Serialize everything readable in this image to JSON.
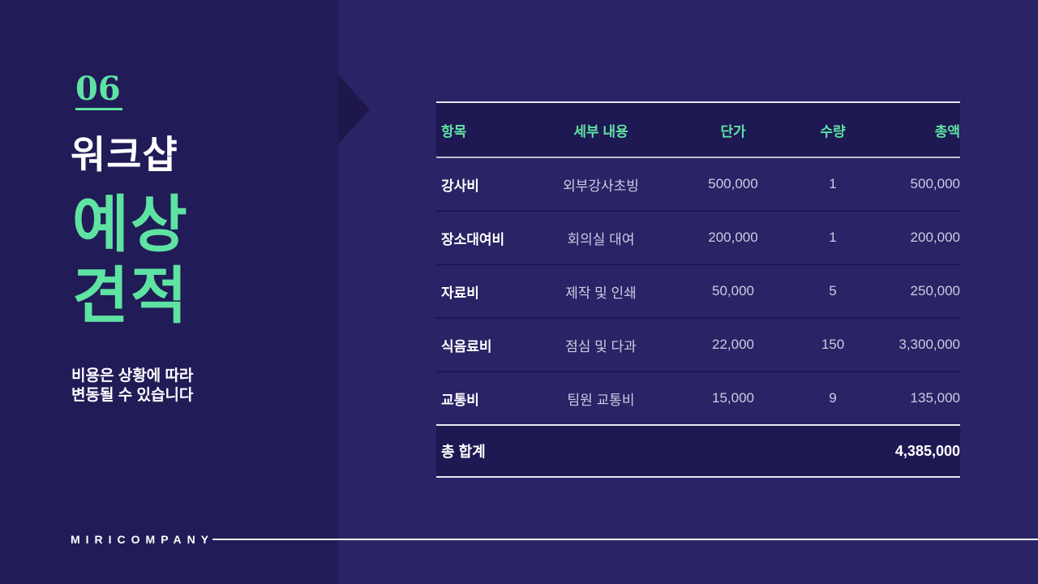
{
  "slide": {
    "section_number": "06",
    "title_line1": "워크샵",
    "title_line2": "예상",
    "title_line3": "견적",
    "subtitle_line1": "비용은 상황에 따라",
    "subtitle_line2": "변동될 수 있습니다",
    "footer_brand": "MIRICOMPANY"
  },
  "colors": {
    "bg_left_panel": "#211B57",
    "bg_right": "#2A2365",
    "accent_green": "#5EE3A2",
    "table_band_bg": "#1E1853",
    "cell_text": "#CBCCE3",
    "white": "#FFFFFF"
  },
  "table": {
    "columns": [
      "항목",
      "세부 내용",
      "단가",
      "수량",
      "총액"
    ],
    "rows": [
      {
        "item": "강사비",
        "detail": "외부강사초빙",
        "unit_price": "500,000",
        "qty": "1",
        "total": "500,000"
      },
      {
        "item": "장소대여비",
        "detail": "회의실 대여",
        "unit_price": "200,000",
        "qty": "1",
        "total": "200,000"
      },
      {
        "item": "자료비",
        "detail": "제작 및 인쇄",
        "unit_price": "50,000",
        "qty": "5",
        "total": "250,000"
      },
      {
        "item": "식음료비",
        "detail": "점심 및 다과",
        "unit_price": "22,000",
        "qty": "150",
        "total": "3,300,000"
      },
      {
        "item": "교통비",
        "detail": "팀원 교통비",
        "unit_price": "15,000",
        "qty": "9",
        "total": "135,000"
      }
    ],
    "total_label": "총 합계",
    "total_value": "4,385,000"
  }
}
